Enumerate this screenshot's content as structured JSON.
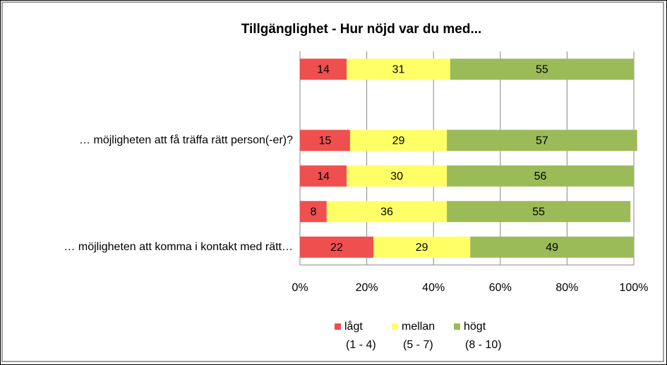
{
  "chart_data": {
    "type": "stacked_bar_horizontal",
    "title": "Tillgänglighet - Hur nöjd var du med...",
    "categories": [
      null,
      null,
      "… möjligheten att få träffa rätt person(-er)?",
      null,
      null,
      "…  möjligheten att komma i kontakt med rätt…"
    ],
    "series": [
      {
        "name": "lågt (1 - 4)",
        "color": "#f04f4f",
        "values": [
          14,
          null,
          15,
          14,
          8,
          22
        ]
      },
      {
        "name": "mellan (5 - 7)",
        "color": "#ffff66",
        "values": [
          31,
          null,
          29,
          30,
          36,
          29
        ]
      },
      {
        "name": "högt (8 - 10)",
        "color": "#9bbb59",
        "values": [
          55,
          null,
          57,
          56,
          55,
          49
        ]
      }
    ],
    "xlim": [
      0,
      100
    ],
    "xticks": [
      {
        "value": 0,
        "label": "0%"
      },
      {
        "value": 20,
        "label": "20%"
      },
      {
        "value": 40,
        "label": "40%"
      },
      {
        "value": 60,
        "label": "60%"
      },
      {
        "value": 80,
        "label": "80%"
      },
      {
        "value": 100,
        "label": "100%"
      }
    ],
    "grid": true,
    "legend": "bottom"
  }
}
